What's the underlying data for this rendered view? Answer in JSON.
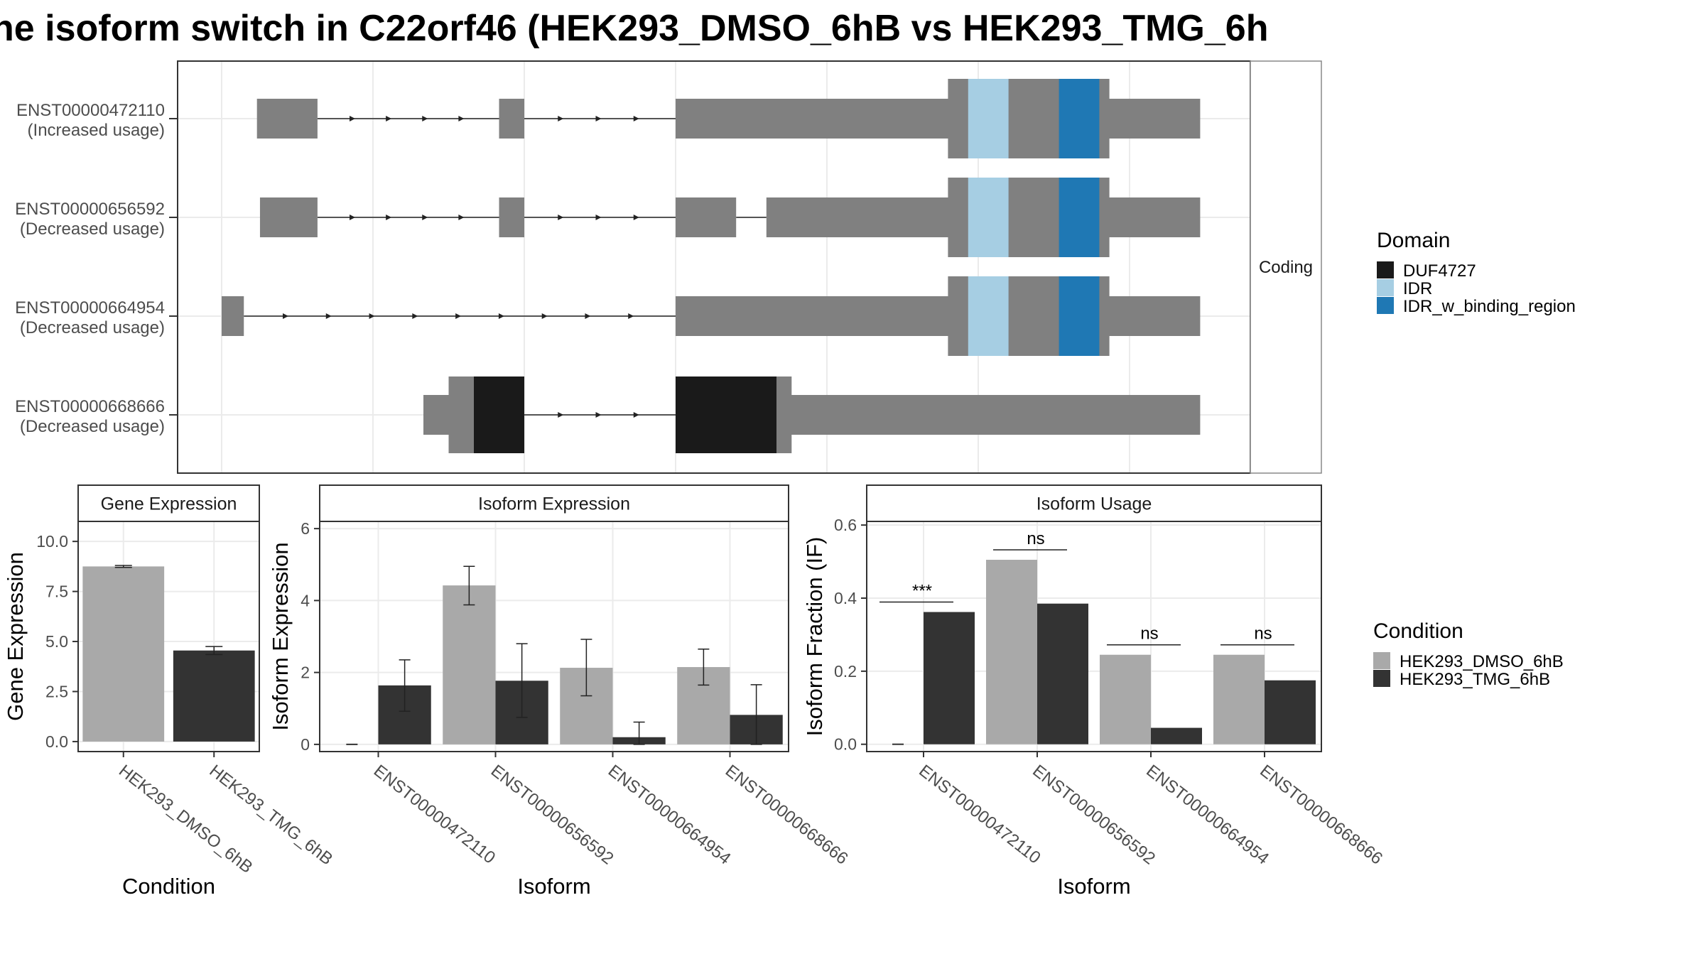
{
  "title": "ne isoform switch in C22orf46 (HEK293_DMSO_6hB vs HEK293_TMG_6h",
  "colors": {
    "gene_body": "#808080",
    "DUF4727": "#1a1a1a",
    "IDR": "#a6cee3",
    "IDR_w_binding_region": "#1f78b4",
    "HEK293_DMSO_6hB": "#a9a9a9",
    "HEK293_TMG_6hB": "#333333"
  },
  "chart_data": [
    {
      "type": "gene_structure",
      "strip_label": "Coding",
      "xlim": [
        0,
        100
      ],
      "isoforms": [
        {
          "id": "ENST00000472110",
          "usage": "(Increased usage)",
          "exons": [
            [
              3.5,
              9.5
            ],
            [
              27.5,
              30
            ],
            [
              45,
              97
            ]
          ],
          "cds": [],
          "domains": [
            {
              "name": "IDR",
              "start": 74,
              "end": 78
            },
            {
              "name": "IDR_w_binding_region",
              "start": 83,
              "end": 87
            }
          ],
          "cds_range": [
            72,
            88
          ],
          "introns": [
            [
              9.5,
              27.5
            ],
            [
              30,
              45
            ]
          ]
        },
        {
          "id": "ENST00000656592",
          "usage": "(Decreased usage)",
          "exons": [
            [
              3.8,
              9.5
            ],
            [
              27.5,
              30
            ],
            [
              45,
              51
            ],
            [
              54,
              97
            ]
          ],
          "cds": [],
          "domains": [
            {
              "name": "IDR",
              "start": 74,
              "end": 78
            },
            {
              "name": "IDR_w_binding_region",
              "start": 83,
              "end": 87
            }
          ],
          "cds_range": [
            72,
            88
          ],
          "introns": [
            [
              9.5,
              27.5
            ],
            [
              30,
              45
            ],
            [
              51,
              54
            ]
          ]
        },
        {
          "id": "ENST00000664954",
          "usage": "(Decreased usage)",
          "exons": [
            [
              0,
              2.2
            ],
            [
              45,
              97
            ]
          ],
          "cds": [],
          "domains": [
            {
              "name": "IDR",
              "start": 74,
              "end": 78
            },
            {
              "name": "IDR_w_binding_region",
              "start": 83,
              "end": 87
            }
          ],
          "cds_range": [
            72,
            88
          ],
          "introns": [
            [
              2.2,
              45
            ]
          ]
        },
        {
          "id": "ENST00000668666",
          "usage": "(Decreased usage)",
          "exons": [
            [
              20,
              30
            ],
            [
              45,
              97
            ]
          ],
          "cds": [],
          "domains": [
            {
              "name": "DUF4727",
              "start": 25,
              "end": 30
            },
            {
              "name": "DUF4727",
              "start": 45,
              "end": 55
            }
          ],
          "cds_range": [
            22.5,
            56.5
          ],
          "introns": [
            [
              30,
              45
            ]
          ]
        }
      ],
      "legend": {
        "title": "Domain",
        "entries": [
          "DUF4727",
          "IDR",
          "IDR_w_binding_region"
        ]
      }
    },
    {
      "type": "bar",
      "strip_label": "Gene Expression",
      "xlabel": "Condition",
      "ylabel": "Gene Expression",
      "categories": [
        "HEK293_DMSO_6hB",
        "HEK293_TMG_6hB"
      ],
      "values": [
        8.75,
        4.55
      ],
      "errors": [
        [
          8.7,
          8.8
        ],
        [
          4.35,
          4.75
        ]
      ],
      "ylim": [
        -0.5,
        11.0
      ],
      "yticks": [
        "0.0",
        "2.5",
        "5.0",
        "7.5",
        "10.0"
      ],
      "ytick_values": [
        0,
        2.5,
        5,
        7.5,
        10
      ]
    },
    {
      "type": "bar",
      "strip_label": "Isoform Expression",
      "xlabel": "Isoform",
      "ylabel": "Isoform Expression",
      "categories": [
        "ENST00000472110",
        "ENST00000656592",
        "ENST00000664954",
        "ENST00000668666"
      ],
      "series": [
        {
          "name": "HEK293_DMSO_6hB",
          "values": [
            0.0,
            4.42,
            2.13,
            2.15
          ],
          "errors": [
            [
              0,
              0
            ],
            [
              3.88,
              4.95
            ],
            [
              1.35,
              2.92
            ],
            [
              1.65,
              2.65
            ]
          ]
        },
        {
          "name": "HEK293_TMG_6hB",
          "values": [
            1.64,
            1.77,
            0.2,
            0.82
          ],
          "errors": [
            [
              0.92,
              2.35
            ],
            [
              0.75,
              2.8
            ],
            [
              0,
              0.62
            ],
            [
              0,
              1.66
            ]
          ]
        }
      ],
      "ylim": [
        -0.2,
        6.2
      ],
      "yticks": [
        "0",
        "2",
        "4",
        "6"
      ],
      "ytick_values": [
        0,
        2,
        4,
        6
      ]
    },
    {
      "type": "bar",
      "strip_label": "Isoform Usage",
      "xlabel": "Isoform",
      "ylabel": "Isoform Fraction (IF)",
      "categories": [
        "ENST00000472110",
        "ENST00000656592",
        "ENST00000664954",
        "ENST00000668666"
      ],
      "series": [
        {
          "name": "HEK293_DMSO_6hB",
          "values": [
            0.0,
            0.505,
            0.245,
            0.245
          ]
        },
        {
          "name": "HEK293_TMG_6hB",
          "values": [
            0.362,
            0.385,
            0.045,
            0.175
          ]
        }
      ],
      "significance": [
        "***",
        "ns",
        "ns",
        "ns"
      ],
      "ylim": [
        -0.02,
        0.61
      ],
      "yticks": [
        "0.0",
        "0.2",
        "0.4",
        "0.6"
      ],
      "ytick_values": [
        0,
        0.2,
        0.4,
        0.6
      ],
      "legend": {
        "title": "Condition",
        "entries": [
          "HEK293_DMSO_6hB",
          "HEK293_TMG_6hB"
        ]
      }
    }
  ]
}
